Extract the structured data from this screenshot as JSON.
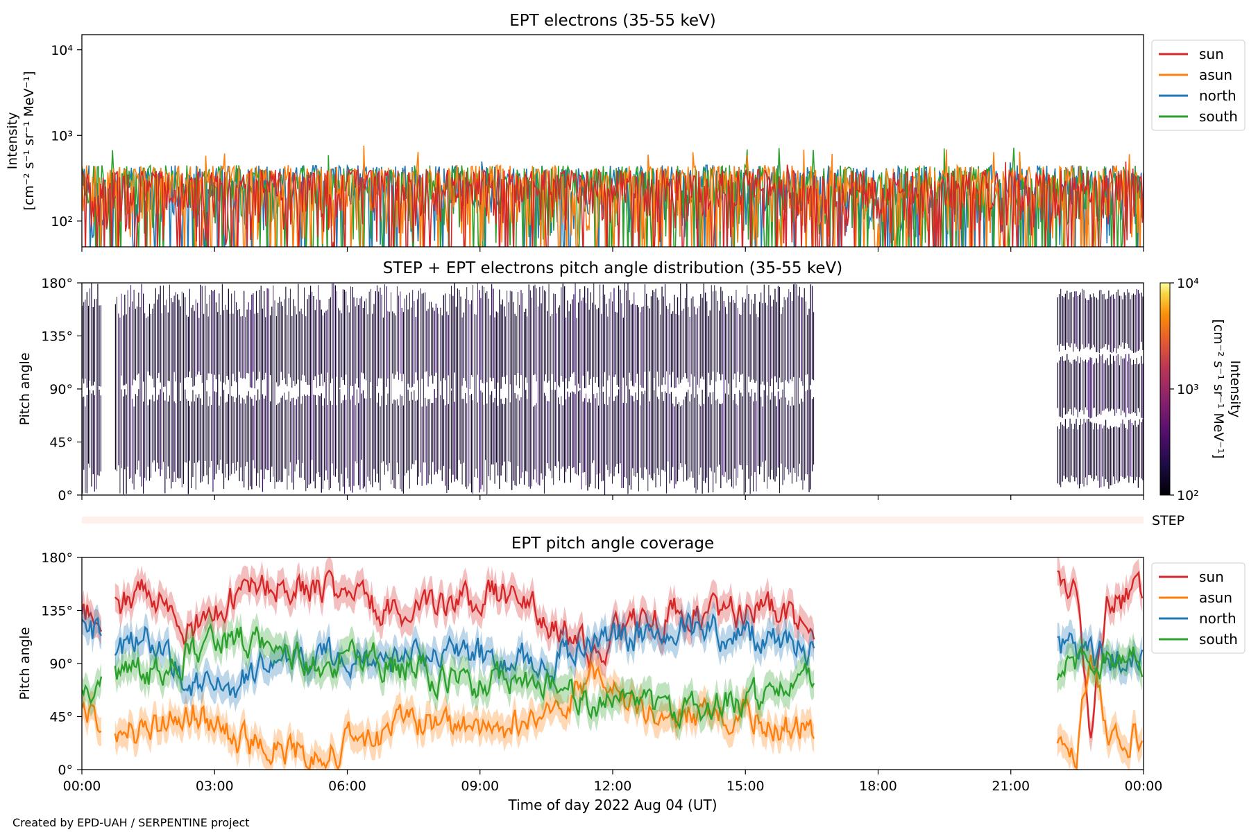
{
  "figure": {
    "footer": "Created by EPD-UAH / SERPENTINE project",
    "xlabel": "Time of day 2022 Aug 04 (UT)",
    "x_ticks": [
      "00:00",
      "03:00",
      "06:00",
      "09:00",
      "12:00",
      "15:00",
      "18:00",
      "21:00",
      "00:00"
    ]
  },
  "chart_data": [
    {
      "type": "line",
      "title": "EPT electrons (35-55 keV)",
      "ylabel": "Intensity",
      "yunit": "[cm⁻² s⁻¹ sr⁻¹ MeV⁻¹]",
      "yscale": "log",
      "ylim": [
        50,
        15000
      ],
      "y_ticks": [
        100,
        1000,
        10000
      ],
      "y_tick_labels": [
        "10²",
        "10³",
        "10⁴"
      ],
      "xlim_hours": [
        0,
        24
      ],
      "legend_position": "outside-right",
      "series": [
        {
          "name": "sun",
          "color": "#d62728",
          "typical_range": [
            50,
            400
          ],
          "peak": 500
        },
        {
          "name": "asun",
          "color": "#ff7f0e",
          "typical_range": [
            50,
            450
          ],
          "peak": 760
        },
        {
          "name": "north",
          "color": "#1f77b4",
          "typical_range": [
            50,
            450
          ],
          "peak": 500
        },
        {
          "name": "south",
          "color": "#2ca02c",
          "typical_range": [
            50,
            450
          ],
          "peak": 720
        }
      ]
    },
    {
      "type": "heatmap",
      "title": "STEP + EPT electrons pitch angle distribution (35-55 keV)",
      "ylabel": "Pitch angle",
      "ylim": [
        0,
        180
      ],
      "y_ticks": [
        "0°",
        "45°",
        "90°",
        "135°",
        "180°"
      ],
      "colorbar": {
        "label": "Intensity",
        "unit": "[cm⁻² s⁻¹ sr⁻¹ MeV⁻¹]",
        "scale": "log",
        "range": [
          100,
          10000
        ],
        "tick_labels": [
          "10²",
          "10³",
          "10⁴"
        ],
        "colormap": "inferno"
      },
      "data_intervals_hours": [
        [
          0.0,
          0.45
        ],
        [
          0.75,
          16.55
        ],
        [
          22.05,
          24.0
        ]
      ],
      "dominant_color": "#1a0838"
    },
    {
      "type": "bar",
      "label": "STEP",
      "color": "#fff0ec"
    },
    {
      "type": "line",
      "title": "EPT pitch angle coverage",
      "ylabel": "Pitch angle",
      "ylim": [
        0,
        180
      ],
      "y_ticks": [
        "0°",
        "45°",
        "90°",
        "135°",
        "180°"
      ],
      "data_intervals_hours": [
        [
          0.0,
          0.45
        ],
        [
          0.75,
          16.55
        ],
        [
          22.05,
          24.0
        ]
      ],
      "legend_position": "outside-right",
      "series": [
        {
          "name": "sun",
          "color": "#d62728",
          "x_hours": [
            0,
            0.45,
            0.75,
            1.5,
            2.5,
            3.5,
            4.5,
            5.5,
            6.5,
            7.5,
            8.5,
            9.5,
            10.5,
            11.5,
            12.5,
            13.5,
            14.5,
            15.5,
            16.5,
            22.1,
            22.5,
            22.8,
            23.2,
            23.6,
            24
          ],
          "values_deg": [
            130,
            135,
            140,
            150,
            120,
            150,
            160,
            155,
            140,
            130,
            140,
            150,
            130,
            100,
            125,
            135,
            130,
            135,
            120,
            160,
            150,
            40,
            145,
            145,
            150
          ]
        },
        {
          "name": "asun",
          "color": "#ff7f0e",
          "x_hours": [
            0,
            0.45,
            0.75,
            1.5,
            2.5,
            3.5,
            4.5,
            5.5,
            6.5,
            7.5,
            8.5,
            9.5,
            10.5,
            11.5,
            12.5,
            13.5,
            14.5,
            15.5,
            16.5,
            22.1,
            22.5,
            22.8,
            23.2,
            23.6,
            24
          ],
          "values_deg": [
            50,
            45,
            40,
            30,
            50,
            25,
            20,
            15,
            25,
            40,
            35,
            35,
            45,
            80,
            55,
            45,
            50,
            40,
            35,
            25,
            15,
            100,
            30,
            30,
            28
          ]
        },
        {
          "name": "north",
          "color": "#1f77b4",
          "x_hours": [
            0,
            0.45,
            0.75,
            1.5,
            2.5,
            3.5,
            4.5,
            5.5,
            6.5,
            7.5,
            8.5,
            9.5,
            10.5,
            11.5,
            12.5,
            13.5,
            14.5,
            15.5,
            16.5,
            22.1,
            22.5,
            22.8,
            23.2,
            23.6,
            24
          ],
          "values_deg": [
            125,
            110,
            100,
            110,
            70,
            75,
            90,
            95,
            90,
            95,
            100,
            95,
            90,
            110,
            115,
            125,
            115,
            115,
            100,
            105,
            100,
            95,
            95,
            90,
            92
          ]
        },
        {
          "name": "south",
          "color": "#2ca02c",
          "x_hours": [
            0,
            0.45,
            0.75,
            1.5,
            2.5,
            3.5,
            4.5,
            5.5,
            6.5,
            7.5,
            8.5,
            9.5,
            10.5,
            11.5,
            12.5,
            13.5,
            14.5,
            15.5,
            16.5,
            22.1,
            22.5,
            22.8,
            23.2,
            23.6,
            24
          ],
          "values_deg": [
            65,
            75,
            85,
            80,
            100,
            110,
            100,
            90,
            95,
            85,
            70,
            75,
            70,
            60,
            55,
            50,
            60,
            60,
            75,
            80,
            85,
            90,
            90,
            88,
            90
          ]
        }
      ]
    }
  ]
}
